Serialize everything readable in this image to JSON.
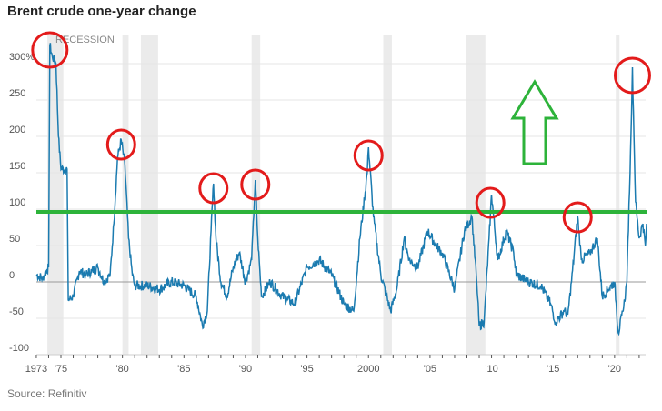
{
  "chart_data": {
    "type": "line",
    "title": "Brent crude one-year change",
    "source": "Source: Refinitiv",
    "recession_label": "RECESSION",
    "xlim": [
      1973,
      2022.8
    ],
    "ylim": [
      -100,
      330
    ],
    "y_ticks": [
      {
        "v": 300,
        "label": "300%"
      },
      {
        "v": 250,
        "label": "250"
      },
      {
        "v": 200,
        "label": "200"
      },
      {
        "v": 150,
        "label": "150"
      },
      {
        "v": 100,
        "label": "100"
      },
      {
        "v": 50,
        "label": "50"
      },
      {
        "v": 0,
        "label": "0"
      },
      {
        "v": -50,
        "label": "-50"
      },
      {
        "v": -100,
        "label": "-100"
      }
    ],
    "x_ticks": [
      {
        "v": 1973,
        "label": "1973"
      },
      {
        "v": 1975,
        "label": "'75"
      },
      {
        "v": 1980,
        "label": "'80"
      },
      {
        "v": 1985,
        "label": "'85"
      },
      {
        "v": 1990,
        "label": "'90"
      },
      {
        "v": 1995,
        "label": "'95"
      },
      {
        "v": 2000,
        "label": "2000"
      },
      {
        "v": 2005,
        "label": "'05"
      },
      {
        "v": 2010,
        "label": "'10"
      },
      {
        "v": 2015,
        "label": "'15"
      },
      {
        "v": 2020,
        "label": "'20"
      }
    ],
    "recessions": [
      [
        1973.9,
        1975.2
      ],
      [
        1980.0,
        1980.5
      ],
      [
        1981.5,
        1982.9
      ],
      [
        1990.5,
        1991.2
      ],
      [
        2001.2,
        2001.9
      ],
      [
        2007.9,
        2009.5
      ],
      [
        2020.1,
        2020.4
      ]
    ],
    "series": [
      {
        "name": "Brent crude one-year change (%)",
        "color": "#1b7bb0",
        "points": [
          [
            1973.0,
            10
          ],
          [
            1973.5,
            5
          ],
          [
            1973.8,
            15
          ],
          [
            1974.0,
            20
          ],
          [
            1974.1,
            325
          ],
          [
            1974.3,
            310
          ],
          [
            1974.6,
            300
          ],
          [
            1974.8,
            200
          ],
          [
            1975.0,
            155
          ],
          [
            1975.5,
            155
          ],
          [
            1975.6,
            -25
          ],
          [
            1976.0,
            -20
          ],
          [
            1976.5,
            15
          ],
          [
            1977.0,
            10
          ],
          [
            1977.5,
            15
          ],
          [
            1978.0,
            20
          ],
          [
            1978.5,
            0
          ],
          [
            1979.0,
            10
          ],
          [
            1979.3,
            80
          ],
          [
            1979.6,
            170
          ],
          [
            1979.9,
            195
          ],
          [
            1980.2,
            160
          ],
          [
            1980.5,
            60
          ],
          [
            1980.8,
            10
          ],
          [
            1981.0,
            -5
          ],
          [
            1982.0,
            -5
          ],
          [
            1983.0,
            -10
          ],
          [
            1984.0,
            0
          ],
          [
            1985.0,
            -5
          ],
          [
            1986.0,
            -20
          ],
          [
            1986.5,
            -60
          ],
          [
            1986.9,
            -40
          ],
          [
            1987.2,
            70
          ],
          [
            1987.4,
            135
          ],
          [
            1987.6,
            60
          ],
          [
            1988.0,
            0
          ],
          [
            1988.5,
            -20
          ],
          [
            1989.0,
            20
          ],
          [
            1989.5,
            40
          ],
          [
            1990.0,
            0
          ],
          [
            1990.5,
            30
          ],
          [
            1990.8,
            140
          ],
          [
            1991.0,
            60
          ],
          [
            1991.3,
            -20
          ],
          [
            1992.0,
            0
          ],
          [
            1993.0,
            -20
          ],
          [
            1994.0,
            -30
          ],
          [
            1995.0,
            20
          ],
          [
            1996.0,
            30
          ],
          [
            1997.0,
            10
          ],
          [
            1998.0,
            -30
          ],
          [
            1998.8,
            -40
          ],
          [
            1999.3,
            60
          ],
          [
            1999.9,
            150
          ],
          [
            2000.0,
            185
          ],
          [
            2000.4,
            90
          ],
          [
            2001.0,
            10
          ],
          [
            2001.8,
            -40
          ],
          [
            2002.3,
            -10
          ],
          [
            2002.9,
            60
          ],
          [
            2003.3,
            30
          ],
          [
            2004.0,
            20
          ],
          [
            2004.8,
            70
          ],
          [
            2005.5,
            50
          ],
          [
            2006.0,
            40
          ],
          [
            2007.0,
            -10
          ],
          [
            2007.8,
            70
          ],
          [
            2008.4,
            90
          ],
          [
            2008.8,
            0
          ],
          [
            2009.0,
            -60
          ],
          [
            2009.4,
            -55
          ],
          [
            2009.8,
            60
          ],
          [
            2010.0,
            120
          ],
          [
            2010.5,
            30
          ],
          [
            2011.2,
            70
          ],
          [
            2011.8,
            40
          ],
          [
            2012.0,
            10
          ],
          [
            2013.0,
            0
          ],
          [
            2014.0,
            -5
          ],
          [
            2014.8,
            -30
          ],
          [
            2015.2,
            -55
          ],
          [
            2015.9,
            -40
          ],
          [
            2016.2,
            -45
          ],
          [
            2016.5,
            0
          ],
          [
            2017.0,
            90
          ],
          [
            2017.3,
            30
          ],
          [
            2018.0,
            40
          ],
          [
            2018.6,
            60
          ],
          [
            2019.0,
            -20
          ],
          [
            2019.5,
            -10
          ],
          [
            2020.0,
            0
          ],
          [
            2020.3,
            -70
          ],
          [
            2020.7,
            -40
          ],
          [
            2021.0,
            0
          ],
          [
            2021.3,
            180
          ],
          [
            2021.45,
            295
          ],
          [
            2021.7,
            110
          ],
          [
            2022.0,
            60
          ],
          [
            2022.3,
            80
          ],
          [
            2022.5,
            50
          ],
          [
            2022.6,
            80
          ]
        ]
      }
    ],
    "annotations": {
      "threshold_line": {
        "value": 100,
        "color": "#2db33a"
      },
      "up_arrow_color": "#2db33a",
      "circle_color": "#e31b1b",
      "circled_peaks": [
        [
          1974.1,
          325
        ],
        [
          1979.9,
          195
        ],
        [
          1987.4,
          135
        ],
        [
          1990.8,
          140
        ],
        [
          2000.0,
          180
        ],
        [
          2009.9,
          115
        ],
        [
          2017.0,
          95
        ],
        [
          2021.45,
          290
        ]
      ]
    }
  }
}
